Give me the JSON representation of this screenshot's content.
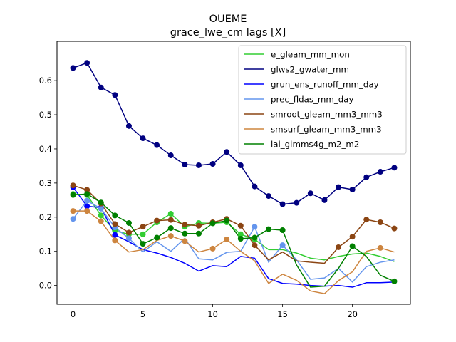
{
  "chart_data": {
    "type": "line",
    "title": "OUEME",
    "subtitle": "grace_lwe_cm lags [X]",
    "xlabel": "",
    "ylabel": "",
    "xlim": [
      -1.15,
      24.15
    ],
    "ylim": [
      -0.055,
      0.715
    ],
    "x_ticks": [
      0,
      5,
      10,
      15,
      20
    ],
    "y_ticks": [
      0.0,
      0.1,
      0.2,
      0.3,
      0.4,
      0.5,
      0.6
    ],
    "x_tick_labels": [
      "0",
      "5",
      "10",
      "15",
      "20"
    ],
    "y_tick_labels": [
      "0.0",
      "0.1",
      "0.2",
      "0.3",
      "0.4",
      "0.5",
      "0.6"
    ],
    "grid": false,
    "legend_position": "top-right",
    "x": [
      0,
      1,
      2,
      3,
      4,
      5,
      6,
      7,
      8,
      9,
      10,
      11,
      12,
      13,
      14,
      15,
      16,
      17,
      18,
      19,
      20,
      21,
      22,
      23
    ],
    "series": [
      {
        "name": "e_gleam_mm_mon",
        "color": "#32cd32",
        "values": [
          0.268,
          0.265,
          0.205,
          0.16,
          0.15,
          0.15,
          0.185,
          0.21,
          0.172,
          0.183,
          0.182,
          0.185,
          0.15,
          0.135,
          0.105,
          0.105,
          0.095,
          0.08,
          0.075,
          0.085,
          0.092,
          0.095,
          0.085,
          0.07
        ],
        "markers": [
          0,
          1,
          2,
          3,
          4,
          5,
          6,
          7,
          8,
          9,
          10,
          11,
          12,
          13
        ]
      },
      {
        "name": "glws2_gwater_mm",
        "color": "#000080",
        "values": [
          0.637,
          0.652,
          0.58,
          0.558,
          0.467,
          0.431,
          0.411,
          0.381,
          0.354,
          0.352,
          0.356,
          0.391,
          0.352,
          0.29,
          0.262,
          0.238,
          0.242,
          0.27,
          0.25,
          0.288,
          0.281,
          0.317,
          0.333,
          0.345
        ],
        "markers": [
          0,
          1,
          2,
          3,
          4,
          5,
          6,
          7,
          8,
          9,
          10,
          11,
          12,
          13,
          14,
          15,
          16,
          17,
          18,
          19,
          20,
          21,
          22,
          23
        ]
      },
      {
        "name": "grun_ens_runoff_mm_day",
        "color": "#0000ff",
        "values": [
          0.288,
          0.232,
          0.228,
          0.148,
          0.128,
          0.105,
          0.095,
          0.082,
          0.065,
          0.042,
          0.058,
          0.055,
          0.085,
          0.08,
          0.02,
          0.006,
          0.004,
          0.0,
          -0.002,
          0.0,
          -0.005,
          0.008,
          0.008,
          0.01
        ],
        "markers": [
          0,
          1,
          2,
          3
        ]
      },
      {
        "name": "prec_fldas_mm_day",
        "color": "#6495ed",
        "values": [
          0.195,
          0.248,
          0.225,
          0.17,
          0.138,
          0.098,
          0.128,
          0.1,
          0.138,
          0.078,
          0.075,
          0.097,
          0.1,
          0.172,
          0.068,
          0.118,
          0.075,
          0.018,
          0.022,
          0.05,
          0.01,
          0.055,
          0.068,
          0.075
        ],
        "markers": [
          0,
          1,
          2,
          3,
          4,
          13,
          15
        ]
      },
      {
        "name": "smroot_gleam_mm3_mm3",
        "color": "#8b4513",
        "values": [
          0.293,
          0.28,
          0.24,
          0.18,
          0.155,
          0.172,
          0.19,
          0.192,
          0.178,
          0.175,
          0.185,
          0.195,
          0.175,
          0.118,
          0.075,
          0.098,
          0.072,
          0.068,
          0.065,
          0.112,
          0.143,
          0.193,
          0.185,
          0.167
        ],
        "markers": [
          0,
          1,
          2,
          3,
          4,
          5,
          6,
          7,
          8,
          9,
          10,
          11,
          12,
          13,
          19,
          20,
          21,
          22,
          23
        ]
      },
      {
        "name": "smsurf_gleam_mm3_mm3",
        "color": "#cd853f",
        "values": [
          0.218,
          0.218,
          0.188,
          0.132,
          0.098,
          0.105,
          0.132,
          0.145,
          0.13,
          0.098,
          0.108,
          0.135,
          0.1,
          0.072,
          0.006,
          0.033,
          0.015,
          -0.016,
          -0.024,
          0.014,
          0.04,
          0.1,
          0.11,
          0.098
        ],
        "markers": [
          0,
          1,
          2,
          3,
          7,
          8,
          10,
          11,
          22
        ]
      },
      {
        "name": "lai_gimms4g_m2_m2",
        "color": "#008000",
        "values": [
          0.265,
          0.268,
          0.243,
          0.205,
          0.183,
          0.122,
          0.14,
          0.168,
          0.152,
          0.152,
          0.182,
          0.19,
          0.137,
          0.14,
          0.165,
          0.162,
          0.06,
          -0.005,
          -0.002,
          0.05,
          0.115,
          0.085,
          0.03,
          0.012
        ],
        "markers": [
          0,
          1,
          2,
          3,
          4,
          5,
          6,
          7,
          8,
          9,
          10,
          11,
          12,
          13,
          14,
          15,
          20,
          23
        ]
      }
    ]
  }
}
